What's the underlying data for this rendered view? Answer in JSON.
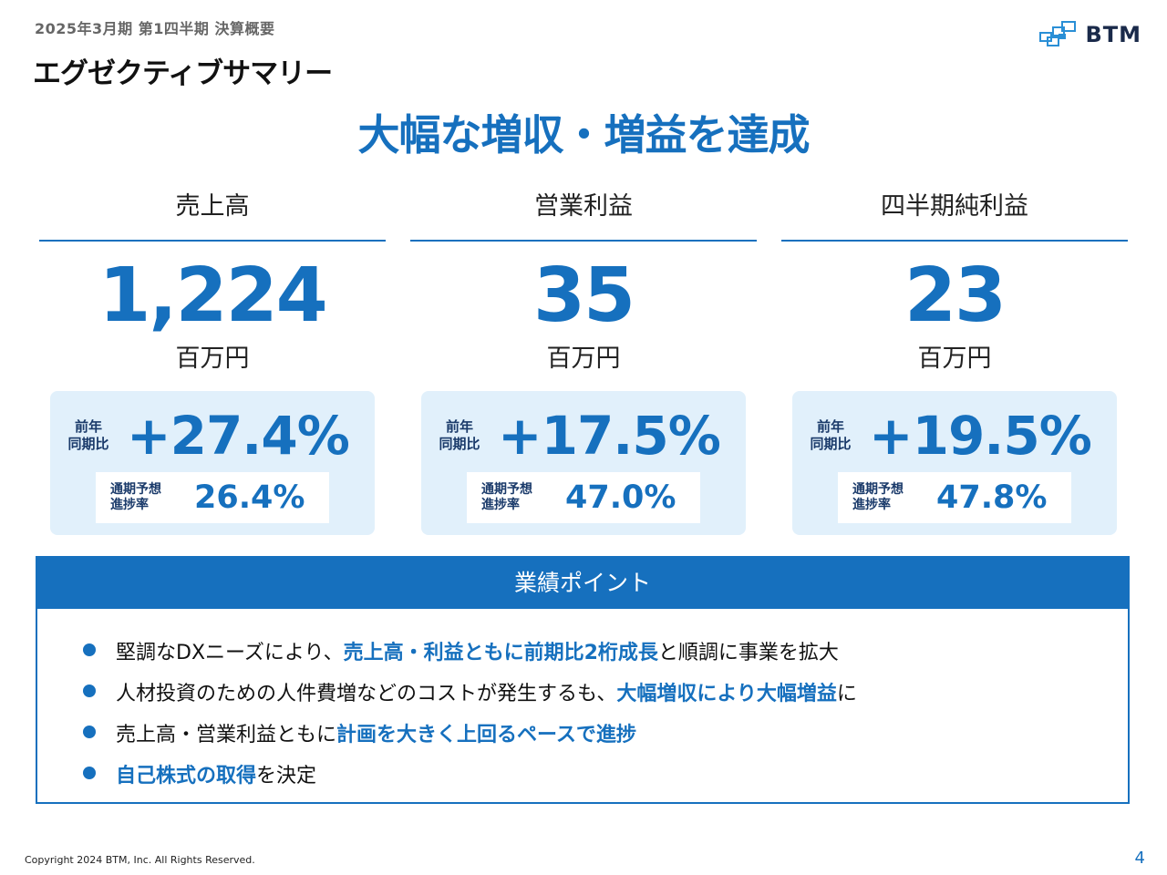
{
  "header": {
    "subtitle": "2025年3月期 第1四半期 決算概要",
    "title": "エグゼクティブサマリー",
    "logo_text": "BTM",
    "logo_icon": "btm-logo-icon",
    "accent_color": "#1670be"
  },
  "headline": "大幅な増収・増益を達成",
  "kpis": [
    {
      "label": "売上高",
      "value": "1,224",
      "unit": "百万円",
      "yoy_label_1": "前年",
      "yoy_label_2": "同期比",
      "yoy": "+27.4%",
      "progress_label_1": "通期予想",
      "progress_label_2": "進捗率",
      "progress": "26.4%"
    },
    {
      "label": "営業利益",
      "value": "35",
      "unit": "百万円",
      "yoy_label_1": "前年",
      "yoy_label_2": "同期比",
      "yoy": "+17.5%",
      "progress_label_1": "通期予想",
      "progress_label_2": "進捗率",
      "progress": "47.0%"
    },
    {
      "label": "四半期純利益",
      "value": "23",
      "unit": "百万円",
      "yoy_label_1": "前年",
      "yoy_label_2": "同期比",
      "yoy": "+19.5%",
      "progress_label_1": "通期予想",
      "progress_label_2": "進捗率",
      "progress": "47.8%"
    }
  ],
  "points": {
    "header": "業績ポイント",
    "items": [
      [
        "堅調なDXニーズにより、",
        "売上高・利益ともに前期比2桁成長",
        "と順調に事業を拡大"
      ],
      [
        "人材投資のための人件費増などのコストが発生するも、",
        "大幅増収により大幅増益",
        "に"
      ],
      [
        "売上高・営業利益ともに",
        "計画を大きく上回るペースで進捗",
        ""
      ],
      [
        "",
        "自己株式の取得",
        "を決定"
      ]
    ]
  },
  "footer": {
    "copyright": "Copyright 2024 BTM, Inc. All Rights Reserved.",
    "page": "4"
  }
}
